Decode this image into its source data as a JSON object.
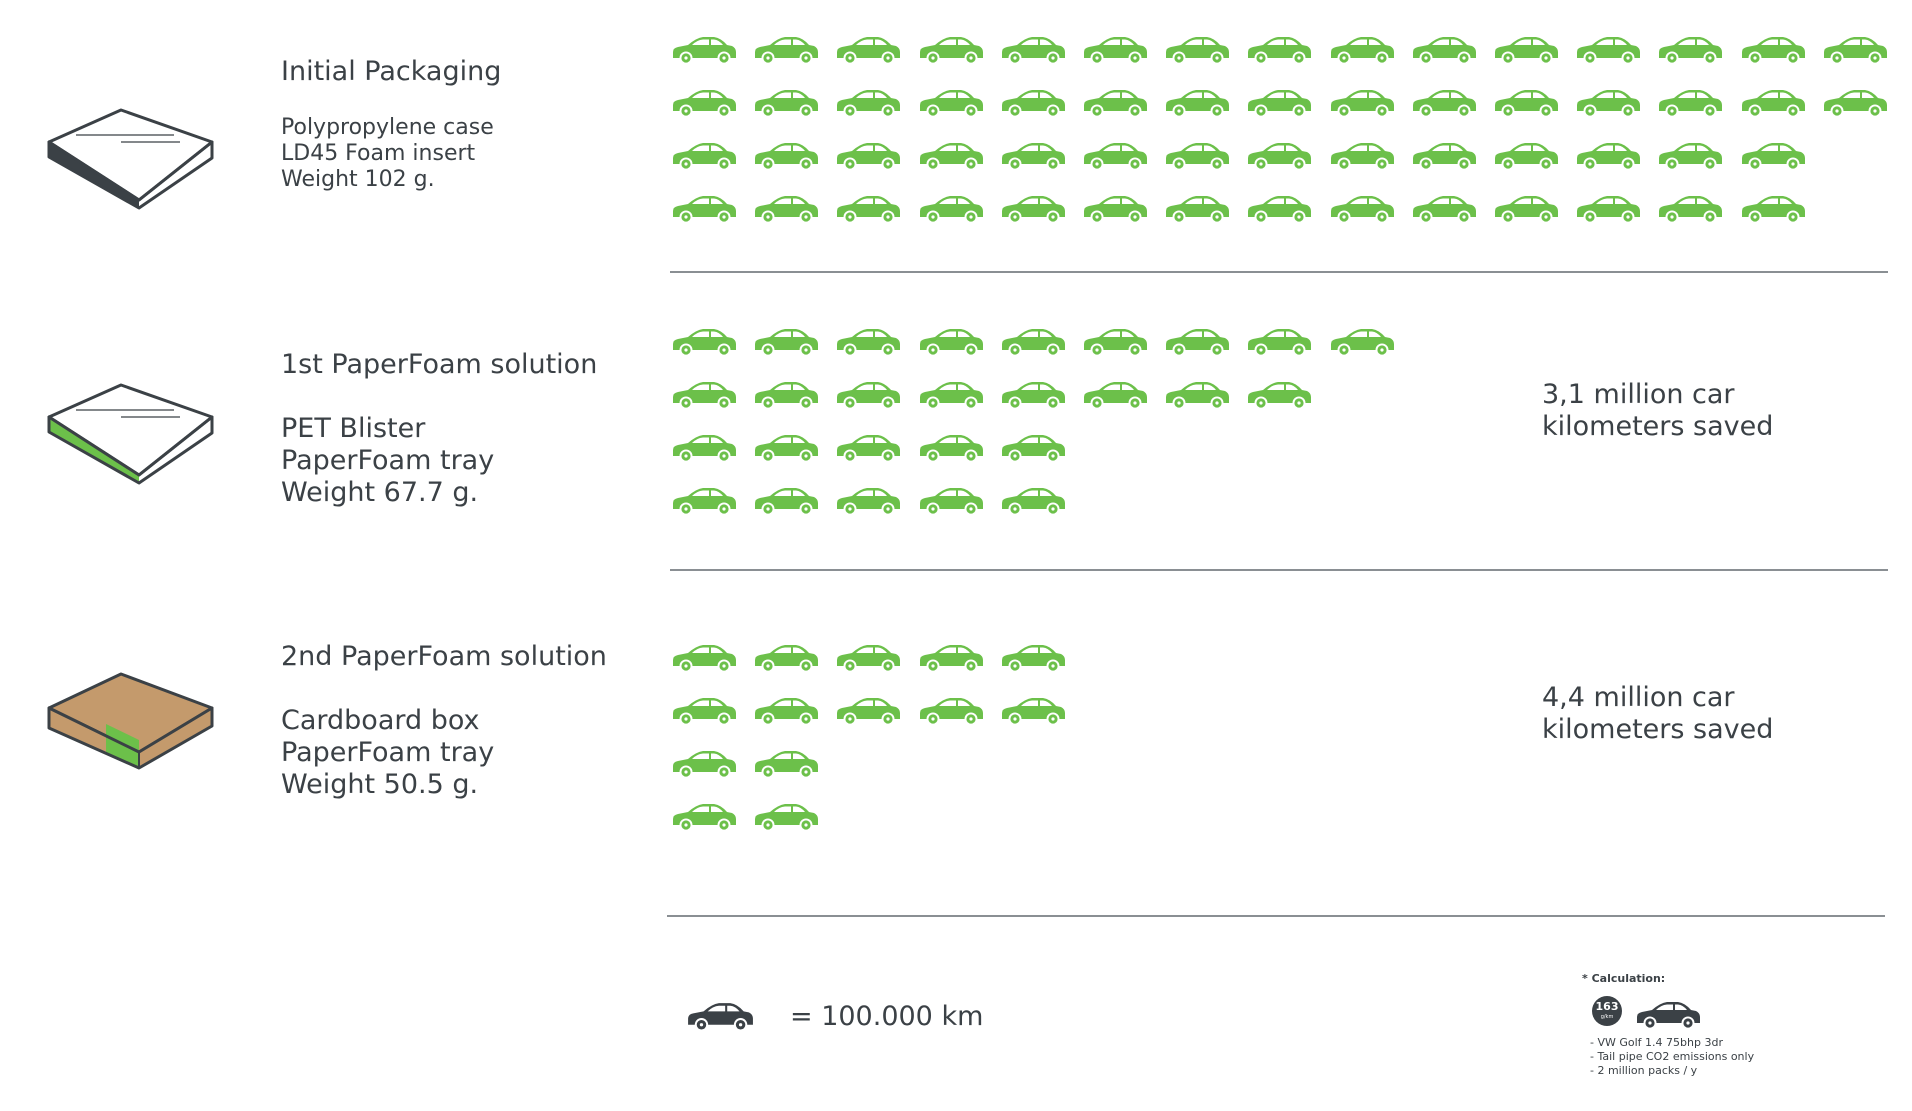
{
  "colors": {
    "accent_green": "#6cc04a",
    "dark": "#3b4146",
    "cardboard": "#c49a6c"
  },
  "icons": {
    "car": "car-icon",
    "box": "package-box-icon"
  },
  "packagings": [
    {
      "title": "Initial Packaging",
      "lines": [
        "Polypropylene case",
        "LD45 Foam insert",
        "Weight 102 g."
      ],
      "car_rows": [
        15,
        15,
        14,
        14
      ],
      "saved_lines": []
    },
    {
      "title": "1st PaperFoam solution",
      "lines": [
        "PET Blister",
        "PaperFoam tray",
        "Weight 67.7 g."
      ],
      "car_rows": [
        9,
        8,
        5,
        5
      ],
      "saved_lines": [
        "3,1 million car",
        "kilometers saved"
      ]
    },
    {
      "title": "2nd PaperFoam solution",
      "lines": [
        "Cardboard box",
        "PaperFoam tray",
        "Weight 50.5 g."
      ],
      "car_rows": [
        5,
        5,
        2,
        2
      ],
      "saved_lines": [
        "4,4 million car",
        "kilometers saved"
      ]
    }
  ],
  "legend": {
    "text": "= 100.000 km"
  },
  "calculation": {
    "title": "* Calculation:",
    "badge_value": "163",
    "badge_unit": "g/km",
    "notes": [
      "- VW Golf 1.4  75bhp 3dr",
      "- Tail pipe CO2 emissions only",
      "- 2 million packs / y"
    ]
  }
}
